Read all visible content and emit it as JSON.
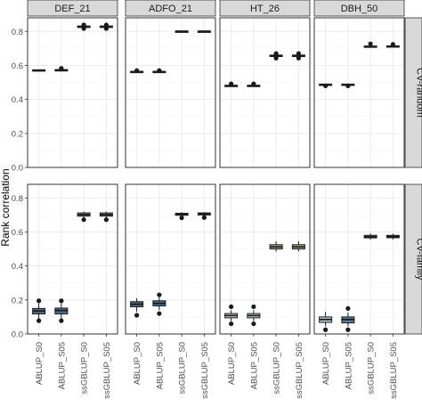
{
  "chart_data": {
    "type": "boxplot",
    "ylabel": "Rank correlation",
    "xlabel": "",
    "ylim": [
      0,
      0.88
    ],
    "yticks": [
      0.0,
      0.2,
      0.4,
      0.6,
      0.8
    ],
    "grid": true,
    "categories": [
      "ABLUP_S0",
      "ABLUP_S05",
      "ssGBLUP_S0",
      "ssGBLUP_S05"
    ],
    "columns": [
      "DEF_21",
      "ADFO_21",
      "HT_26",
      "DBH_50"
    ],
    "rows": [
      "CV-random",
      "CV-family"
    ],
    "panels": [
      {
        "row": "CV-random",
        "column": "DEF_21",
        "boxes": [
          {
            "category": "ABLUP_S0",
            "min": 0.568,
            "q1": 0.57,
            "median": 0.572,
            "q3": 0.574,
            "max": 0.576,
            "outliers": []
          },
          {
            "category": "ABLUP_S05",
            "min": 0.568,
            "q1": 0.571,
            "median": 0.573,
            "q3": 0.575,
            "max": 0.578,
            "outliers": [
              0.583
            ]
          },
          {
            "category": "ssGBLUP_S0",
            "min": 0.82,
            "q1": 0.823,
            "median": 0.828,
            "q3": 0.832,
            "max": 0.835,
            "outliers": [
              0.817,
              0.838
            ]
          },
          {
            "category": "ssGBLUP_S05",
            "min": 0.82,
            "q1": 0.823,
            "median": 0.828,
            "q3": 0.832,
            "max": 0.835,
            "outliers": [
              0.817,
              0.838
            ]
          }
        ]
      },
      {
        "row": "CV-random",
        "column": "ADFO_21",
        "boxes": [
          {
            "category": "ABLUP_S0",
            "min": 0.558,
            "q1": 0.561,
            "median": 0.563,
            "q3": 0.565,
            "max": 0.567,
            "outliers": [
              0.57
            ]
          },
          {
            "category": "ABLUP_S05",
            "min": 0.558,
            "q1": 0.561,
            "median": 0.563,
            "q3": 0.565,
            "max": 0.567,
            "outliers": [
              0.57
            ]
          },
          {
            "category": "ssGBLUP_S0",
            "min": 0.799,
            "q1": 0.8,
            "median": 0.801,
            "q3": 0.802,
            "max": 0.803,
            "outliers": []
          },
          {
            "category": "ssGBLUP_S05",
            "min": 0.799,
            "q1": 0.8,
            "median": 0.801,
            "q3": 0.802,
            "max": 0.803,
            "outliers": []
          }
        ]
      },
      {
        "row": "CV-random",
        "column": "HT_26",
        "boxes": [
          {
            "category": "ABLUP_S0",
            "min": 0.476,
            "q1": 0.479,
            "median": 0.481,
            "q3": 0.483,
            "max": 0.486,
            "outliers": [
              0.492
            ]
          },
          {
            "category": "ABLUP_S05",
            "min": 0.476,
            "q1": 0.479,
            "median": 0.481,
            "q3": 0.483,
            "max": 0.486,
            "outliers": [
              0.492
            ]
          },
          {
            "category": "ssGBLUP_S0",
            "min": 0.648,
            "q1": 0.652,
            "median": 0.657,
            "q3": 0.661,
            "max": 0.665,
            "outliers": [
              0.643,
              0.67
            ]
          },
          {
            "category": "ssGBLUP_S05",
            "min": 0.648,
            "q1": 0.652,
            "median": 0.657,
            "q3": 0.661,
            "max": 0.665,
            "outliers": [
              0.643,
              0.67
            ]
          }
        ]
      },
      {
        "row": "CV-random",
        "column": "DBH_50",
        "boxes": [
          {
            "category": "ABLUP_S0",
            "min": 0.483,
            "q1": 0.486,
            "median": 0.488,
            "q3": 0.49,
            "max": 0.492,
            "outliers": [
              0.48
            ]
          },
          {
            "category": "ABLUP_S05",
            "min": 0.483,
            "q1": 0.486,
            "median": 0.488,
            "q3": 0.49,
            "max": 0.492,
            "outliers": [
              0.48
            ]
          },
          {
            "category": "ssGBLUP_S0",
            "min": 0.705,
            "q1": 0.708,
            "median": 0.711,
            "q3": 0.714,
            "max": 0.718,
            "outliers": [
              0.727
            ]
          },
          {
            "category": "ssGBLUP_S05",
            "min": 0.706,
            "q1": 0.709,
            "median": 0.712,
            "q3": 0.715,
            "max": 0.718,
            "outliers": [
              0.724
            ]
          }
        ]
      },
      {
        "row": "CV-family",
        "column": "DEF_21",
        "boxes": [
          {
            "category": "ABLUP_S0",
            "min": 0.09,
            "q1": 0.118,
            "median": 0.135,
            "q3": 0.15,
            "max": 0.18,
            "outliers": [
              0.078,
              0.195
            ]
          },
          {
            "category": "ABLUP_S05",
            "min": 0.09,
            "q1": 0.118,
            "median": 0.138,
            "q3": 0.152,
            "max": 0.18,
            "outliers": [
              0.078,
              0.195
            ]
          },
          {
            "category": "ssGBLUP_S0",
            "min": 0.682,
            "q1": 0.693,
            "median": 0.702,
            "q3": 0.712,
            "max": 0.72,
            "outliers": [
              0.672
            ]
          },
          {
            "category": "ssGBLUP_S05",
            "min": 0.682,
            "q1": 0.693,
            "median": 0.702,
            "q3": 0.712,
            "max": 0.72,
            "outliers": [
              0.672
            ]
          }
        ]
      },
      {
        "row": "CV-family",
        "column": "ADFO_21",
        "boxes": [
          {
            "category": "ABLUP_S0",
            "min": 0.13,
            "q1": 0.16,
            "median": 0.175,
            "q3": 0.19,
            "max": 0.21,
            "outliers": [
              0.11
            ]
          },
          {
            "category": "ABLUP_S05",
            "min": 0.14,
            "q1": 0.165,
            "median": 0.18,
            "q3": 0.195,
            "max": 0.215,
            "outliers": [
              0.12,
              0.23
            ]
          },
          {
            "category": "ssGBLUP_S0",
            "min": 0.69,
            "q1": 0.698,
            "median": 0.704,
            "q3": 0.71,
            "max": 0.716,
            "outliers": [
              0.683
            ]
          },
          {
            "category": "ssGBLUP_S05",
            "min": 0.69,
            "q1": 0.7,
            "median": 0.706,
            "q3": 0.712,
            "max": 0.716,
            "outliers": [
              0.685
            ]
          }
        ]
      },
      {
        "row": "CV-family",
        "column": "HT_26",
        "boxes": [
          {
            "category": "ABLUP_S0",
            "min": 0.075,
            "q1": 0.095,
            "median": 0.108,
            "q3": 0.12,
            "max": 0.14,
            "outliers": [
              0.06,
              0.16
            ]
          },
          {
            "category": "ABLUP_S05",
            "min": 0.075,
            "q1": 0.095,
            "median": 0.108,
            "q3": 0.12,
            "max": 0.14,
            "outliers": [
              0.06,
              0.16
            ]
          },
          {
            "category": "ssGBLUP_S0",
            "min": 0.485,
            "q1": 0.5,
            "median": 0.512,
            "q3": 0.525,
            "max": 0.545,
            "outliers": []
          },
          {
            "category": "ssGBLUP_S05",
            "min": 0.485,
            "q1": 0.5,
            "median": 0.512,
            "q3": 0.525,
            "max": 0.545,
            "outliers": []
          }
        ]
      },
      {
        "row": "CV-family",
        "column": "DBH_50",
        "boxes": [
          {
            "category": "ABLUP_S0",
            "min": 0.045,
            "q1": 0.068,
            "median": 0.085,
            "q3": 0.1,
            "max": 0.13,
            "outliers": [
              0.025
            ]
          },
          {
            "category": "ABLUP_S05",
            "min": 0.045,
            "q1": 0.065,
            "median": 0.085,
            "q3": 0.1,
            "max": 0.125,
            "outliers": [
              0.025,
              0.15
            ]
          },
          {
            "category": "ssGBLUP_S0",
            "min": 0.555,
            "q1": 0.565,
            "median": 0.572,
            "q3": 0.58,
            "max": 0.59,
            "outliers": []
          },
          {
            "category": "ssGBLUP_S05",
            "min": 0.555,
            "q1": 0.566,
            "median": 0.573,
            "q3": 0.58,
            "max": 0.59,
            "outliers": []
          }
        ]
      }
    ],
    "colors": {
      "panel_bg": "#ffffff",
      "panel_border": "#333333",
      "strip_bg": "#d9d9d9",
      "grid_major": "#ebebeb",
      "grid_minor": "#f5f5f5",
      "box_line": "#1a1a1a",
      "fills": {
        "CV-random": [
          "#fafafa",
          "#fafafa",
          "#fafafa",
          "#fafafa"
        ],
        "CV-family": {
          "DEF_21": [
            "#4f6f87",
            "#4f6f87",
            "#8f9ea6",
            "#8f9ea6"
          ],
          "ADFO_21": [
            "#4f6f87",
            "#4f6f87",
            "#8f9ea6",
            "#8f9ea6"
          ],
          "HT_26": [
            "#d4dce2",
            "#d4dce2",
            "#a7bd8a",
            "#a7bd8a"
          ],
          "DBH_50": [
            "#b9cad6",
            "#5e7d96",
            "#6f8a9c",
            "#6f8a9c"
          ]
        }
      }
    }
  }
}
